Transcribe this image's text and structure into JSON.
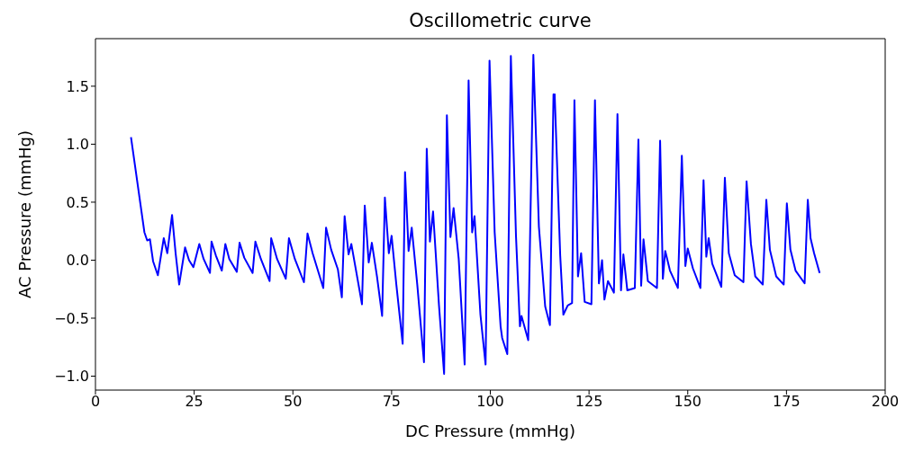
{
  "chart_data": {
    "type": "line",
    "title": "Oscillometric curve",
    "xlabel": "DC Pressure (mmHg)",
    "ylabel": "AC Pressure (mmHg)",
    "xlim": [
      0,
      200
    ],
    "xticks": [
      0,
      25,
      50,
      75,
      100,
      125,
      150,
      175,
      200
    ],
    "ylim": [
      -1.12,
      1.91
    ],
    "yticks": [
      {
        "value": -1,
        "label": "−1.0"
      },
      {
        "value": -0.5,
        "label": "−0.5"
      },
      {
        "value": 0,
        "label": "0.0"
      },
      {
        "value": 0.5,
        "label": "0.5"
      },
      {
        "value": 1,
        "label": "1.0"
      },
      {
        "value": 1.5,
        "label": "1.5"
      }
    ],
    "grid": false,
    "legend": false,
    "marker": "none",
    "line_style": "solid",
    "series": [
      {
        "color": "#0000ff",
        "x": [
          9.0,
          12.4,
          13.1,
          13.8,
          14.6,
          15.8,
          17.3,
          18.2,
          19.4,
          20.3,
          21.2,
          22.7,
          23.7,
          24.8,
          26.3,
          27.4,
          29.0,
          29.4,
          30.5,
          32.0,
          32.9,
          33.9,
          35.8,
          36.5,
          37.7,
          39.8,
          40.5,
          41.9,
          44.1,
          44.5,
          46.0,
          48.2,
          49.0,
          50.5,
          52.8,
          53.7,
          55.0,
          57.7,
          58.4,
          59.7,
          61.4,
          62.4,
          63.1,
          64.1,
          64.8,
          66.0,
          67.5,
          68.2,
          69.2,
          70.0,
          71.3,
          72.6,
          73.3,
          74.3,
          75.0,
          76.2,
          77.8,
          78.4,
          79.3,
          80.1,
          81.5,
          83.2,
          83.9,
          84.7,
          85.5,
          87.0,
          88.3,
          89.0,
          89.9,
          90.7,
          92.0,
          93.5,
          94.5,
          95.4,
          96.0,
          97.5,
          98.8,
          99.8,
          101.1,
          102.6,
          103.0,
          104.3,
          105.2,
          106.5,
          107.5,
          107.9,
          109.6,
          110.9,
          112.3,
          113.9,
          115.1,
          116.0,
          116.1,
          116.3,
          117.7,
          118.5,
          119.6,
          120.7,
          121.3,
          122.2,
          123.0,
          123.9,
          125.6,
          126.5,
          127.5,
          128.3,
          128.9,
          129.8,
          131.3,
          132.2,
          133.1,
          133.7,
          134.7,
          136.6,
          137.5,
          138.2,
          138.8,
          139.9,
          142.2,
          143.0,
          143.7,
          144.3,
          145.5,
          147.5,
          148.5,
          149.4,
          150.0,
          151.3,
          153.2,
          154.0,
          154.7,
          155.3,
          156.2,
          158.5,
          159.4,
          160.4,
          161.9,
          164.1,
          164.9,
          166.0,
          167.1,
          169.0,
          169.9,
          170.8,
          172.4,
          174.3,
          175.1,
          176.0,
          177.3,
          179.6,
          180.4,
          181.1,
          182.0,
          183.4
        ],
        "values": [
          1.06,
          0.24,
          0.17,
          0.18,
          -0.01,
          -0.13,
          0.19,
          0.06,
          0.39,
          0.06,
          -0.21,
          0.11,
          0.0,
          -0.06,
          0.14,
          0.01,
          -0.11,
          0.16,
          0.04,
          -0.09,
          0.14,
          0.01,
          -0.1,
          0.15,
          0.02,
          -0.11,
          0.16,
          0.01,
          -0.18,
          0.19,
          0.01,
          -0.16,
          0.19,
          0.01,
          -0.19,
          0.23,
          0.06,
          -0.24,
          0.28,
          0.09,
          -0.08,
          -0.32,
          0.38,
          0.05,
          0.14,
          -0.09,
          -0.38,
          0.47,
          -0.02,
          0.15,
          -0.14,
          -0.48,
          0.54,
          0.06,
          0.21,
          -0.21,
          -0.72,
          0.76,
          0.08,
          0.28,
          -0.21,
          -0.88,
          0.96,
          0.16,
          0.42,
          -0.39,
          -0.98,
          1.25,
          0.2,
          0.45,
          0.01,
          -0.9,
          1.55,
          0.24,
          0.38,
          -0.47,
          -0.9,
          1.72,
          0.24,
          -0.57,
          -0.67,
          -0.81,
          1.76,
          0.21,
          -0.57,
          -0.48,
          -0.69,
          1.77,
          0.29,
          -0.4,
          -0.56,
          1.43,
          1.4,
          1.43,
          0.04,
          -0.47,
          -0.39,
          -0.37,
          1.38,
          -0.14,
          0.06,
          -0.36,
          -0.38,
          1.38,
          -0.2,
          0.0,
          -0.34,
          -0.18,
          -0.28,
          1.26,
          -0.26,
          0.05,
          -0.26,
          -0.24,
          1.04,
          -0.22,
          0.18,
          -0.18,
          -0.24,
          1.03,
          -0.16,
          0.08,
          -0.09,
          -0.24,
          0.9,
          -0.05,
          0.1,
          -0.07,
          -0.24,
          0.69,
          0.03,
          0.19,
          -0.03,
          -0.23,
          0.71,
          0.06,
          -0.13,
          -0.19,
          0.68,
          0.14,
          -0.14,
          -0.21,
          0.52,
          0.09,
          -0.14,
          -0.21,
          0.49,
          0.09,
          -0.09,
          -0.2,
          0.52,
          0.19,
          0.06,
          -0.11
        ]
      }
    ]
  }
}
